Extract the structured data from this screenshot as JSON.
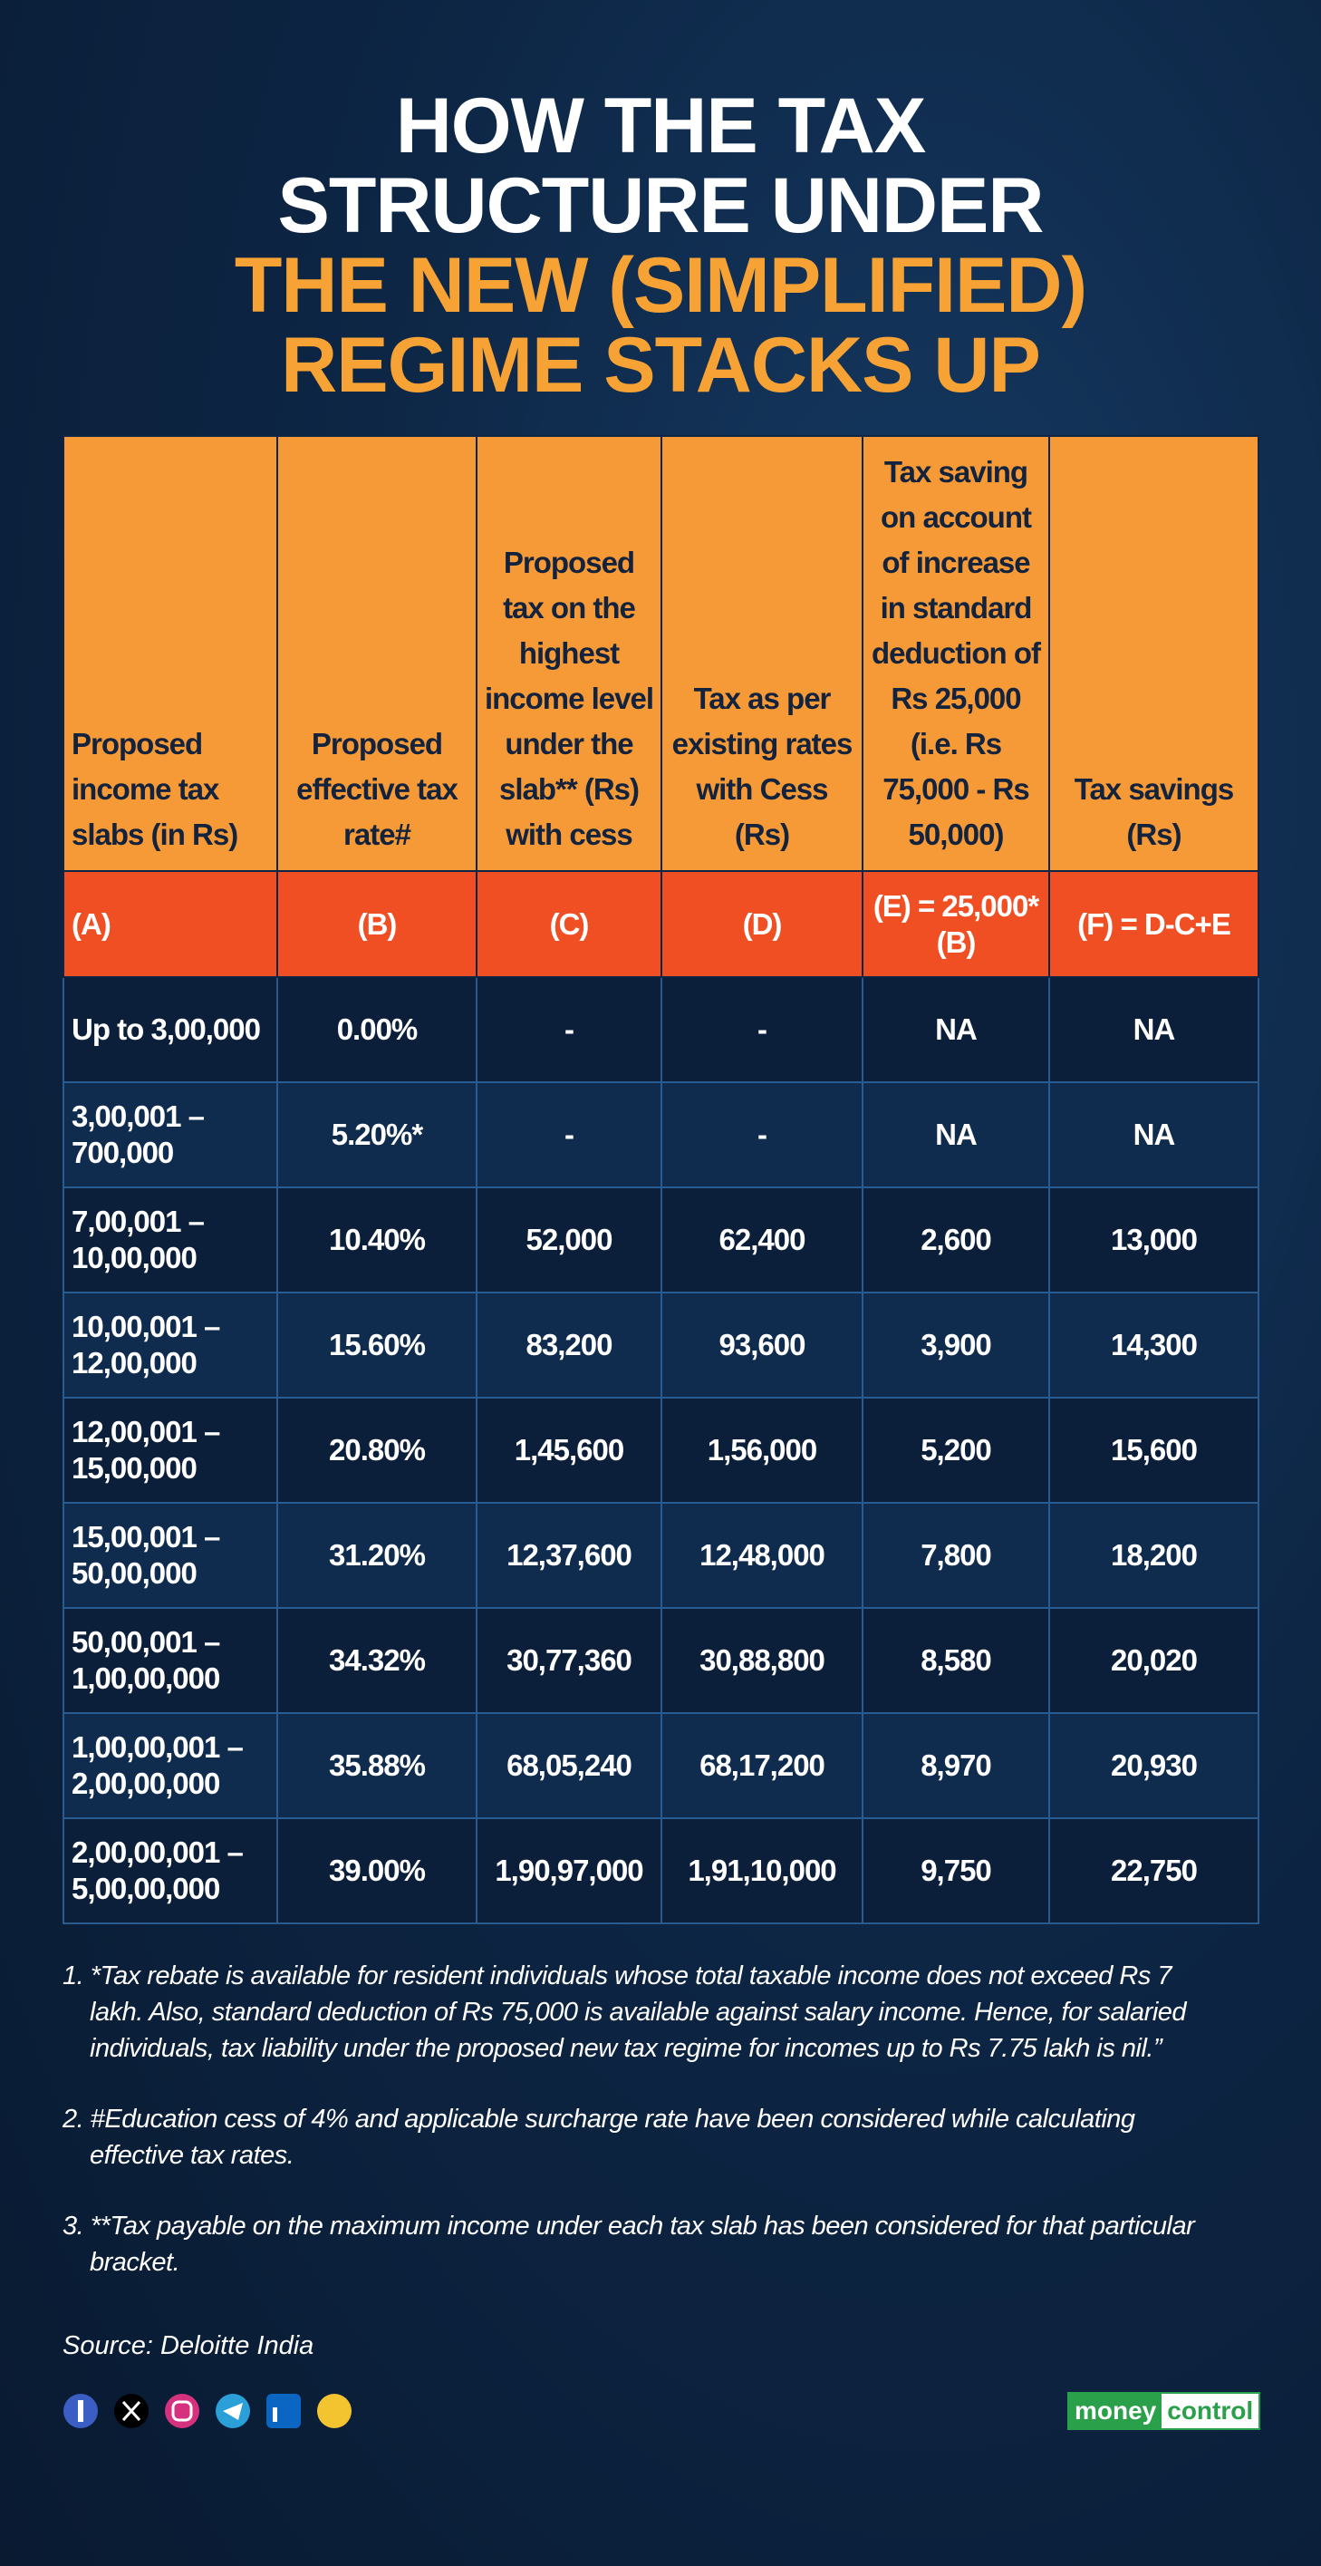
{
  "title": [
    "HOW THE TAX",
    "STRUCTURE UNDER"
  ],
  "highlight": [
    "THE NEW (SIMPLIFIED)",
    "REGIME STACKS UP"
  ],
  "table": {
    "headers": [
      "Proposed income tax slabs (in Rs)",
      "Proposed effective tax rate#",
      "Proposed tax on the highest income level under the slab** (Rs) with cess",
      "Tax as per existing rates with Cess (Rs)",
      "Tax saving on account of increase in standard deduction of Rs 25,000 (i.e. Rs 75,000 - Rs 50,000)",
      "Tax savings (Rs)"
    ],
    "codes": [
      "(A)",
      "(B)",
      "(C)",
      "(D)",
      "(E) = 25,000*(B)",
      "(F) = D-C+E"
    ],
    "rows": [
      [
        "Up to 3,00,000",
        "0.00%",
        "-",
        "-",
        "NA",
        "NA"
      ],
      [
        "3,00,001 – 700,000",
        "5.20%*",
        "-",
        "-",
        "NA",
        "NA"
      ],
      [
        "7,00,001 – 10,00,000",
        "10.40%",
        "52,000",
        "62,400",
        "2,600",
        "13,000"
      ],
      [
        "10,00,001 – 12,00,000",
        "15.60%",
        "83,200",
        "93,600",
        "3,900",
        "14,300"
      ],
      [
        "12,00,001 – 15,00,000",
        "20.80%",
        "1,45,600",
        "1,56,000",
        "5,200",
        "15,600"
      ],
      [
        "15,00,001 – 50,00,000",
        "31.20%",
        "12,37,600",
        "12,48,000",
        "7,800",
        "18,200"
      ],
      [
        "50,00,001 – 1,00,00,000",
        "34.32%",
        "30,77,360",
        "30,88,800",
        "8,580",
        "20,020"
      ],
      [
        "1,00,00,001 – 2,00,00,000",
        "35.88%",
        "68,05,240",
        "68,17,200",
        "8,970",
        "20,930"
      ],
      [
        "2,00,00,001 – 5,00,00,000",
        "39.00%",
        "1,90,97,000",
        "1,91,10,000",
        "9,750",
        "22,750"
      ]
    ]
  },
  "notes": [
    "1.  *Tax rebate is available for resident individuals whose total taxable income does not exceed Rs 7 lakh. Also, standard deduction of Rs 75,000 is available against salary income. Hence, for salaried individuals, tax liability under the proposed new tax regime for incomes up to Rs 7.75 lakh is nil.”",
    "2. #Education cess of 4% and applicable surcharge rate have been considered while calculating effective tax rates.",
    "3. **Tax payable on the maximum income under each tax slab has been considered for that particular bracket."
  ],
  "source": "Source: Deloitte India",
  "brand": [
    "money",
    "control"
  ]
}
